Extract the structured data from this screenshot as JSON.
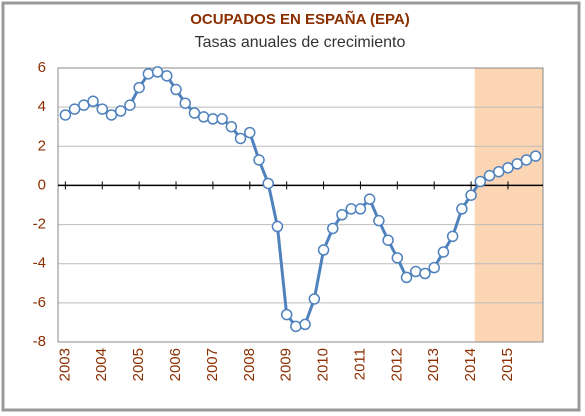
{
  "chart_data": {
    "type": "line",
    "title": "OCUPADOS EN ESPAÑA (EPA)",
    "subtitle": "Tasas anuales de crecimiento",
    "x": [
      2003,
      2003.25,
      2003.5,
      2003.75,
      2004,
      2004.25,
      2004.5,
      2004.75,
      2005,
      2005.25,
      2005.5,
      2005.75,
      2006,
      2006.25,
      2006.5,
      2006.75,
      2007,
      2007.25,
      2007.5,
      2007.75,
      2008,
      2008.25,
      2008.5,
      2008.75,
      2009,
      2009.25,
      2009.5,
      2009.75,
      2010,
      2010.25,
      2010.5,
      2010.75,
      2011,
      2011.25,
      2011.5,
      2011.75,
      2012,
      2012.25,
      2012.5,
      2012.75,
      2013,
      2013.25,
      2013.5,
      2013.75,
      2014,
      2014.25,
      2014.5,
      2014.75,
      2015,
      2015.25,
      2015.5,
      2015.75
    ],
    "series": [
      {
        "name": "Ocupados",
        "color": "#4f81bd",
        "values": [
          3.6,
          3.9,
          4.1,
          4.3,
          3.9,
          3.6,
          3.8,
          4.1,
          5.0,
          5.7,
          5.8,
          5.6,
          4.9,
          4.2,
          3.7,
          3.5,
          3.4,
          3.4,
          3.0,
          2.4,
          2.7,
          1.3,
          0.1,
          -2.1,
          -6.6,
          -7.2,
          -7.1,
          -5.8,
          -3.3,
          -2.2,
          -1.5,
          -1.2,
          -1.2,
          -0.7,
          -1.8,
          -2.8,
          -3.7,
          -4.7,
          -4.4,
          -4.5,
          -4.2,
          -3.4,
          -2.6,
          -1.2,
          -0.5,
          0.2,
          0.5,
          0.7,
          0.9,
          1.1,
          1.3,
          1.5
        ]
      }
    ],
    "xlim": [
      2002.8,
      2015.95
    ],
    "xticks": [
      2003,
      2004,
      2005,
      2006,
      2007,
      2008,
      2009,
      2010,
      2011,
      2012,
      2013,
      2014,
      2015
    ],
    "ylim": [
      -8,
      6
    ],
    "yticks": [
      -8,
      -6,
      -4,
      -2,
      0,
      2,
      4,
      6
    ],
    "grid": true,
    "shade": {
      "x": [
        2014.1,
        2015.95
      ],
      "color": "#fcd5b4"
    }
  }
}
